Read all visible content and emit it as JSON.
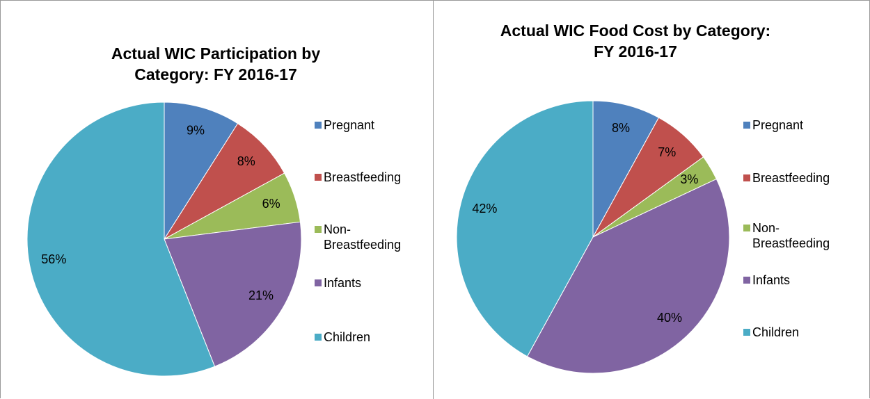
{
  "chart_data": [
    {
      "type": "pie",
      "title": "Actual WIC Participation by Category: FY 2016-17",
      "categories": [
        "Pregnant",
        "Breastfeeding",
        "Non-Breastfeeding",
        "Infants",
        "Children"
      ],
      "values": [
        9,
        8,
        6,
        21,
        56
      ],
      "value_labels": [
        "9%",
        "8%",
        "6%",
        "21%",
        "56%"
      ],
      "colors": [
        "#4F81BD",
        "#C0504D",
        "#9BBB59",
        "#8064A2",
        "#4BACC6"
      ],
      "legend": "right"
    },
    {
      "type": "pie",
      "title": "Actual WIC Food Cost by Category: FY 2016-17",
      "categories": [
        "Pregnant",
        "Breastfeeding",
        "Non-Breastfeeding",
        "Infants",
        "Children"
      ],
      "values": [
        8,
        7,
        3,
        40,
        42
      ],
      "value_labels": [
        "8%",
        "7%",
        "3%",
        "40%",
        "42%"
      ],
      "colors": [
        "#4F81BD",
        "#C0504D",
        "#9BBB59",
        "#8064A2",
        "#4BACC6"
      ],
      "legend": "right"
    }
  ]
}
